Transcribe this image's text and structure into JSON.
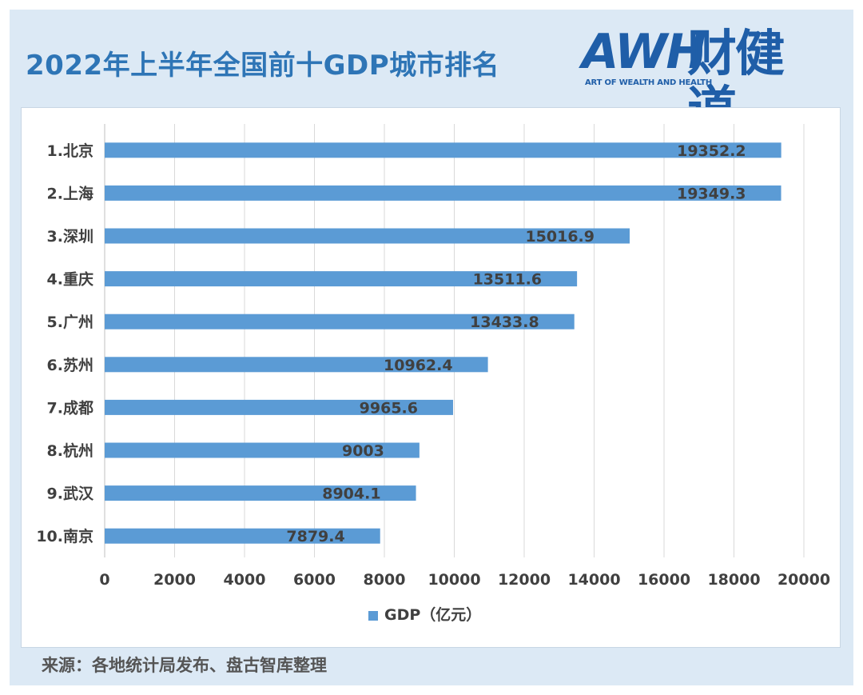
{
  "title": "2022年上半年全国前十GDP城市排名",
  "logo": {
    "mark": "AWH",
    "name": "财健道",
    "tagline": "ART OF WEALTH AND HEALTH"
  },
  "source": "来源：各地统计局发布、盘古智库整理",
  "colors": {
    "bar": "#5b9bd5",
    "title": "#2e75b6",
    "background": "#dce9f5",
    "grid": "#d9d9d9",
    "label": "#404040"
  },
  "chart_data": {
    "type": "bar",
    "orientation": "horizontal",
    "title": "2022年上半年全国前十GDP城市排名",
    "categories": [
      "1.北京",
      "2.上海",
      "3.深圳",
      "4.重庆",
      "5.广州",
      "6.苏州",
      "7.成都",
      "8.杭州",
      "9.武汉",
      "10.南京"
    ],
    "series": [
      {
        "name": "GDP（亿元）",
        "values": [
          19352.2,
          19349.3,
          15016.9,
          13511.6,
          13433.8,
          10962.4,
          9965.6,
          9003,
          8904.1,
          7879.4
        ],
        "labels": [
          "19352.2",
          "19349.3",
          "15016.9",
          "13511.6",
          "13433.8",
          "10962.4",
          "9965.6",
          "9003",
          "8904.1",
          "7879.4"
        ]
      }
    ],
    "xlim": [
      0,
      20000
    ],
    "xticks": [
      0,
      2000,
      4000,
      6000,
      8000,
      10000,
      12000,
      14000,
      16000,
      18000,
      20000
    ],
    "xtick_labels": [
      "0",
      "2000",
      "4000",
      "6000",
      "8000",
      "10000",
      "12000",
      "14000",
      "16000",
      "18000",
      "20000"
    ],
    "grid": "vertical",
    "legend": "bottom-center"
  }
}
